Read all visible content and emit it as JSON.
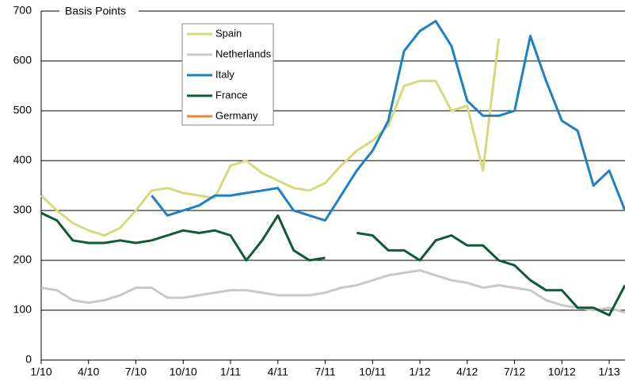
{
  "chart_data": {
    "type": "line",
    "y_label": "Basis Points",
    "x": [
      "2010-01",
      "2010-02",
      "2010-03",
      "2010-04",
      "2010-05",
      "2010-06",
      "2010-07",
      "2010-08",
      "2010-09",
      "2010-10",
      "2010-11",
      "2010-12",
      "2011-01",
      "2011-02",
      "2011-03",
      "2011-04",
      "2011-05",
      "2011-06",
      "2011-07",
      "2011-08",
      "2011-09",
      "2011-10",
      "2011-11",
      "2011-12",
      "2012-01",
      "2012-02",
      "2012-03",
      "2012-04",
      "2012-05",
      "2012-06",
      "2012-07",
      "2012-08",
      "2012-09",
      "2012-10",
      "2012-11",
      "2012-12",
      "2013-01",
      "2013-02"
    ],
    "series": [
      {
        "name": "Spain",
        "color": "#d6d97a",
        "values": [
          330,
          300,
          275,
          260,
          250,
          265,
          300,
          340,
          345,
          335,
          330,
          325,
          390,
          400,
          375,
          360,
          345,
          340,
          355,
          390,
          420,
          440,
          470,
          550,
          560,
          560,
          500,
          510,
          380,
          645,
          null,
          null,
          null,
          null,
          null,
          null,
          null,
          null
        ]
      },
      {
        "name": "Netherlands",
        "color": "#c8c8c8",
        "values": [
          145,
          140,
          120,
          115,
          120,
          130,
          145,
          145,
          125,
          125,
          130,
          135,
          140,
          140,
          135,
          130,
          130,
          130,
          135,
          145,
          150,
          160,
          170,
          175,
          180,
          170,
          160,
          155,
          145,
          150,
          145,
          140,
          120,
          110,
          105,
          100,
          105,
          95
        ]
      },
      {
        "name": "Italy",
        "color": "#1f7fc4",
        "values": [
          null,
          null,
          null,
          null,
          null,
          null,
          null,
          330,
          290,
          300,
          310,
          330,
          330,
          335,
          340,
          345,
          300,
          290,
          280,
          330,
          380,
          420,
          480,
          620,
          660,
          680,
          630,
          520,
          490,
          490,
          500,
          650,
          560,
          480,
          460,
          350,
          380,
          300
        ]
      },
      {
        "name": "France",
        "color": "#0d5a35",
        "values": [
          295,
          280,
          240,
          235,
          235,
          240,
          235,
          240,
          250,
          260,
          255,
          260,
          250,
          200,
          240,
          290,
          220,
          200,
          205,
          null,
          255,
          250,
          220,
          220,
          200,
          240,
          250,
          230,
          230,
          200,
          190,
          160,
          140,
          140,
          105,
          105,
          90,
          150
        ]
      },
      {
        "name": "Germany",
        "color": "#f08030",
        "values": [
          null,
          null,
          null,
          null,
          null,
          null,
          null,
          null,
          null,
          null,
          null,
          null,
          null,
          null,
          null,
          null,
          null,
          null,
          null,
          null,
          null,
          null,
          null,
          null,
          null,
          null,
          null,
          null,
          null,
          null,
          null,
          null,
          null,
          null,
          null,
          null,
          null,
          null
        ]
      }
    ],
    "xlim": [
      "2010-01",
      "2013-02"
    ],
    "xticks": [
      {
        "value": "2010-01",
        "label": "1/10"
      },
      {
        "value": "2010-04",
        "label": "4/10"
      },
      {
        "value": "2010-07",
        "label": "7/10"
      },
      {
        "value": "2010-10",
        "label": "10/10"
      },
      {
        "value": "2011-01",
        "label": "1/11"
      },
      {
        "value": "2011-04",
        "label": "4/11"
      },
      {
        "value": "2011-07",
        "label": "7/11"
      },
      {
        "value": "2011-10",
        "label": "10/11"
      },
      {
        "value": "2012-01",
        "label": "1/12"
      },
      {
        "value": "2012-04",
        "label": "4/12"
      },
      {
        "value": "2012-07",
        "label": "7/12"
      },
      {
        "value": "2012-10",
        "label": "10/12"
      },
      {
        "value": "2013-01",
        "label": "1/13"
      }
    ],
    "ylim": [
      0,
      700
    ],
    "yticks": [
      0,
      100,
      200,
      300,
      400,
      500,
      600,
      700
    ],
    "grid": true
  }
}
